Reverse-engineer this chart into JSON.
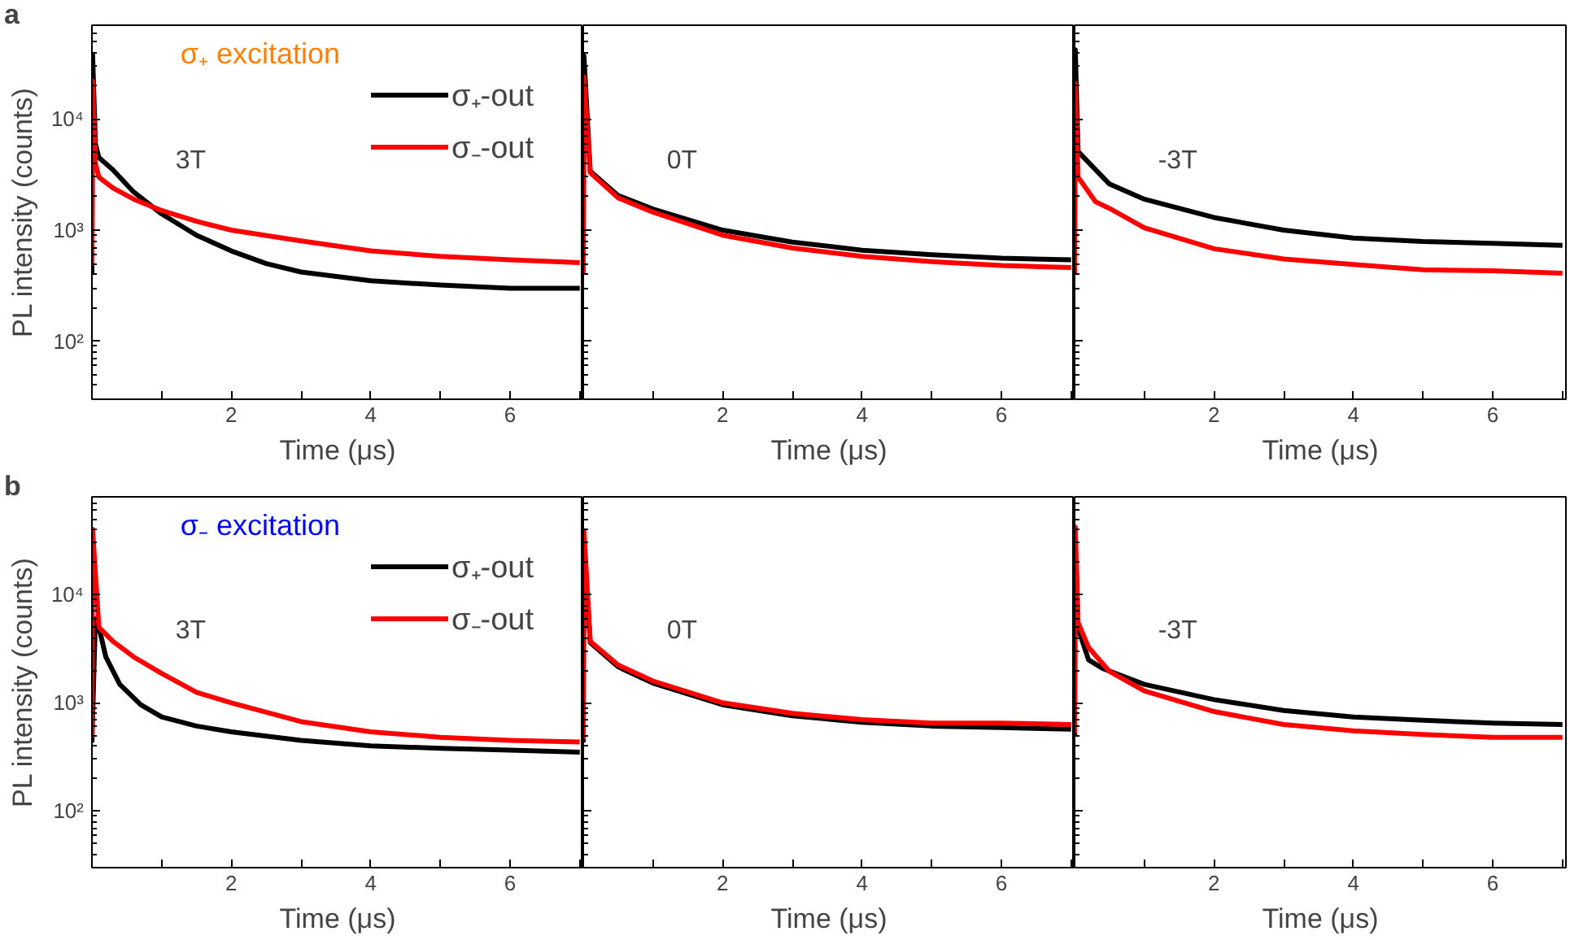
{
  "chart_data": [
    {
      "type": "line",
      "title": "a",
      "subtitle": "σ₊ excitation",
      "xlabel": "Time (μs)",
      "ylabel": "PL intensity (counts)",
      "annotations": [
        "3T"
      ],
      "log": "y",
      "grid": false,
      "legend": "top right",
      "xlim": [
        0,
        7.05
      ],
      "ylim": [
        30,
        70000
      ],
      "xticks": [
        {
          "value": 1,
          "label": null
        },
        2,
        {
          "value": 3,
          "label": null
        },
        4,
        {
          "value": 5,
          "label": null
        },
        6,
        {
          "value": 7,
          "label": null
        }
      ],
      "yticks": [
        {
          "value": 100,
          "label": "10²"
        },
        {
          "value": 1000,
          "label": "10³"
        },
        {
          "value": 10000,
          "label": "10⁴"
        }
      ],
      "series": [
        {
          "name": "σ₊-out",
          "color": "#000000",
          "x": [
            0,
            0.01,
            0.05,
            0.1,
            0.3,
            0.6,
            1,
            1.5,
            2,
            2.5,
            3,
            4,
            5,
            6,
            7
          ],
          "values": [
            410,
            38000,
            6000,
            4500,
            3500,
            2200,
            1400,
            900,
            650,
            500,
            420,
            350,
            320,
            300,
            300
          ]
        },
        {
          "name": "σ₋-out",
          "color": "#ff0000",
          "x": [
            0,
            0.01,
            0.05,
            0.1,
            0.3,
            0.6,
            1,
            1.5,
            2,
            3,
            4,
            5,
            6,
            7
          ],
          "values": [
            480,
            22000,
            4000,
            3000,
            2400,
            1900,
            1500,
            1200,
            1000,
            800,
            650,
            580,
            540,
            510
          ]
        }
      ]
    },
    {
      "type": "line",
      "xlabel": "Time (μs)",
      "annotations": [
        "0T"
      ],
      "log": "y",
      "grid": false,
      "tick_labels": "x",
      "xlim": [
        0,
        7.05
      ],
      "ylim": [
        30,
        70000
      ],
      "xticks": [
        {
          "value": 1,
          "label": null
        },
        2,
        {
          "value": 3,
          "label": null
        },
        4,
        {
          "value": 5,
          "label": null
        },
        6,
        {
          "value": 7,
          "label": null
        }
      ],
      "yticks": [
        {
          "value": 100,
          "label": null
        },
        {
          "value": 1000,
          "label": null
        },
        {
          "value": 10000,
          "label": null
        }
      ],
      "series": [
        {
          "color": "#000000",
          "x": [
            0,
            0.01,
            0.1,
            0.5,
            1,
            2,
            3,
            4,
            5,
            6,
            7
          ],
          "values": [
            400,
            37000,
            3400,
            2050,
            1550,
            1000,
            780,
            660,
            600,
            560,
            540
          ]
        },
        {
          "color": "#ff0000",
          "x": [
            0,
            0.01,
            0.1,
            0.5,
            1,
            2,
            3,
            4,
            5,
            6,
            7
          ],
          "values": [
            400,
            24000,
            3300,
            1950,
            1450,
            900,
            690,
            580,
            520,
            480,
            460
          ]
        }
      ]
    },
    {
      "type": "line",
      "xlabel": "Time (μs)",
      "annotations": [
        "-3T"
      ],
      "log": "y",
      "grid": false,
      "tick_labels": "x",
      "xlim": [
        0,
        7.05
      ],
      "ylim": [
        30,
        70000
      ],
      "xticks": [
        {
          "value": 1,
          "label": null
        },
        2,
        {
          "value": 3,
          "label": null
        },
        4,
        {
          "value": 5,
          "label": null
        },
        6,
        {
          "value": 7,
          "label": null
        }
      ],
      "yticks": [
        {
          "value": 100,
          "label": null
        },
        {
          "value": 1000,
          "label": null
        },
        {
          "value": 10000,
          "label": null
        }
      ],
      "series": [
        {
          "color": "#000000",
          "x": [
            0,
            0.01,
            0.05,
            0.5,
            1,
            2,
            3,
            4,
            5,
            6,
            7
          ],
          "values": [
            600,
            42000,
            5100,
            2600,
            1900,
            1300,
            1000,
            850,
            790,
            760,
            730
          ]
        },
        {
          "color": "#ff0000",
          "x": [
            0,
            0.01,
            0.05,
            0.3,
            0.5,
            1,
            2,
            3,
            4,
            5,
            6,
            7
          ],
          "values": [
            400,
            21000,
            3000,
            1800,
            1570,
            1050,
            680,
            550,
            490,
            440,
            430,
            410
          ]
        }
      ]
    },
    {
      "type": "line",
      "title": "b",
      "subtitle": "σ₋ excitation",
      "xlabel": "Time (μs)",
      "ylabel": "PL intensity (counts)",
      "annotations": [
        "3T"
      ],
      "log": "y",
      "grid": false,
      "legend": "top right",
      "xlim": [
        0,
        7.05
      ],
      "ylim": [
        30,
        80000
      ],
      "xticks": [
        {
          "value": 1,
          "label": null
        },
        2,
        {
          "value": 3,
          "label": null
        },
        4,
        {
          "value": 5,
          "label": null
        },
        6,
        {
          "value": 7,
          "label": null
        }
      ],
      "yticks": [
        {
          "value": 100,
          "label": "10²"
        },
        {
          "value": 1000,
          "label": "10³"
        },
        {
          "value": 10000,
          "label": "10⁴"
        }
      ],
      "series": [
        {
          "name": "σ₊-out",
          "color": "#000000",
          "x": [
            0,
            0.05,
            0.1,
            0.2,
            0.4,
            0.7,
            1,
            1.5,
            2,
            3,
            4,
            5,
            6,
            7
          ],
          "values": [
            430,
            6000,
            5000,
            2650,
            1480,
            960,
            740,
            610,
            540,
            450,
            400,
            380,
            365,
            350
          ]
        },
        {
          "name": "σ₋-out",
          "color": "#ff0000",
          "x": [
            0,
            0.01,
            0.1,
            0.3,
            0.6,
            1,
            1.5,
            2,
            3,
            4,
            5,
            6,
            7
          ],
          "values": [
            480,
            40000,
            5000,
            3700,
            2650,
            1870,
            1250,
            1000,
            670,
            540,
            480,
            450,
            435
          ]
        }
      ]
    },
    {
      "type": "line",
      "xlabel": "Time (μs)",
      "annotations": [
        "0T"
      ],
      "log": "y",
      "grid": false,
      "tick_labels": "x",
      "xlim": [
        0,
        7.05
      ],
      "ylim": [
        30,
        80000
      ],
      "xticks": [
        {
          "value": 1,
          "label": null
        },
        2,
        {
          "value": 3,
          "label": null
        },
        4,
        {
          "value": 5,
          "label": null
        },
        6,
        {
          "value": 7,
          "label": null
        }
      ],
      "yticks": [
        {
          "value": 100,
          "label": null
        },
        {
          "value": 1000,
          "label": null
        },
        {
          "value": 10000,
          "label": null
        }
      ],
      "series": [
        {
          "color": "#000000",
          "x": [
            0,
            0.01,
            0.1,
            0.5,
            1,
            2,
            3,
            4,
            5,
            6,
            7
          ],
          "values": [
            430,
            30000,
            3600,
            2150,
            1520,
            960,
            760,
            660,
            610,
            590,
            570
          ]
        },
        {
          "color": "#ff0000",
          "x": [
            0,
            0.01,
            0.1,
            0.5,
            1,
            2,
            3,
            4,
            5,
            6,
            7
          ],
          "values": [
            460,
            39000,
            3700,
            2240,
            1590,
            1000,
            800,
            700,
            650,
            650,
            630
          ]
        }
      ]
    },
    {
      "type": "line",
      "xlabel": "Time (μs)",
      "annotations": [
        "-3T"
      ],
      "log": "y",
      "grid": false,
      "tick_labels": "x",
      "xlim": [
        0,
        7.05
      ],
      "ylim": [
        30,
        80000
      ],
      "xticks": [
        {
          "value": 1,
          "label": null
        },
        2,
        {
          "value": 3,
          "label": null
        },
        4,
        {
          "value": 5,
          "label": null
        },
        6,
        {
          "value": 7,
          "label": null
        }
      ],
      "yticks": [
        {
          "value": 100,
          "label": null
        },
        {
          "value": 1000,
          "label": null
        },
        {
          "value": 10000,
          "label": null
        }
      ],
      "series": [
        {
          "color": "#000000",
          "x": [
            0,
            0.01,
            0.05,
            0.2,
            0.4,
            1,
            2,
            3,
            4,
            5,
            6,
            7
          ],
          "values": [
            500,
            30000,
            4900,
            2500,
            2080,
            1480,
            1070,
            850,
            740,
            690,
            650,
            630
          ]
        },
        {
          "color": "#ff0000",
          "x": [
            0,
            0.01,
            0.05,
            0.2,
            0.5,
            1,
            2,
            3,
            4,
            5,
            6,
            7
          ],
          "values": [
            520,
            42000,
            5500,
            3250,
            1950,
            1290,
            830,
            630,
            550,
            510,
            480,
            480
          ]
        }
      ]
    }
  ]
}
